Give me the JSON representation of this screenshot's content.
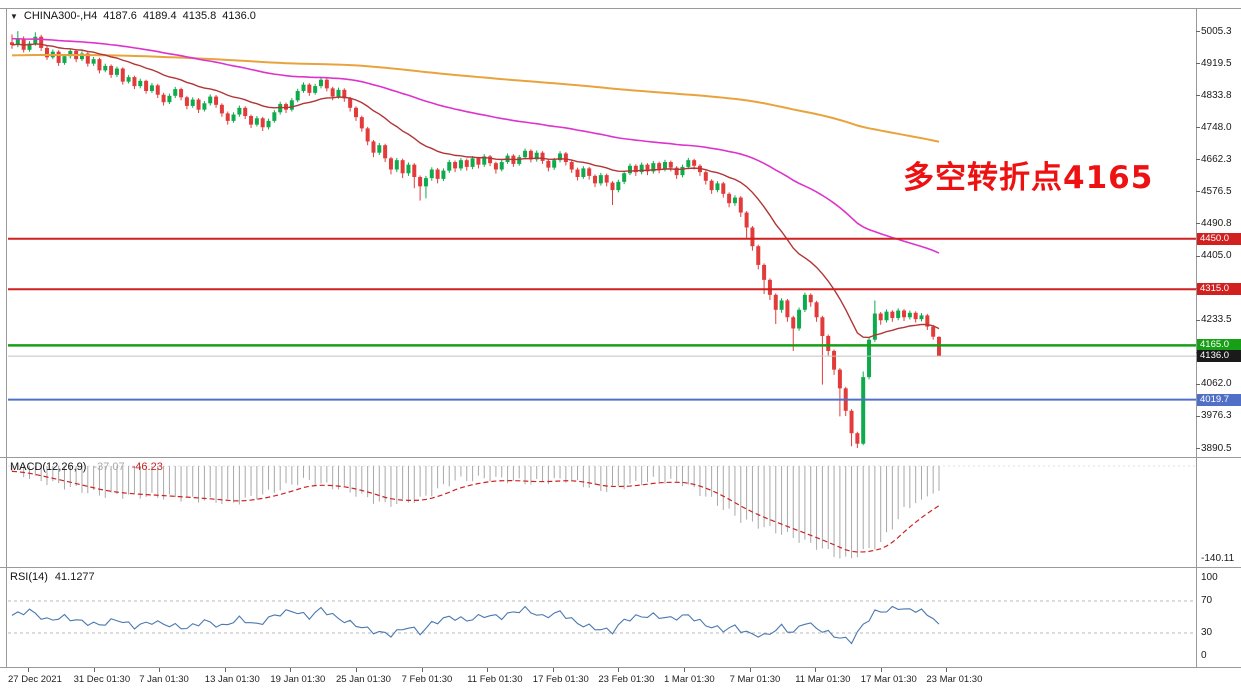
{
  "window_title": "CHINA300-,H4 chart",
  "title": {
    "dropdown_icon": "▼",
    "symbol": "CHINA300-,H4",
    "open": "4187.6",
    "high": "4189.4",
    "low": "4135.8",
    "close": "4136.0"
  },
  "annotation": {
    "text": "多空转折点4165",
    "color": "#ee1111"
  },
  "chart_data": {
    "type": "candlestick",
    "symbol": "CHINA300-",
    "timeframe": "H4",
    "ylim": [
      3871.8,
      5066.8
    ],
    "grid": false,
    "candle_colors": {
      "up": "#0eaa4c",
      "down": "#e23b3b"
    },
    "y_ticks": [
      "5005.3",
      "4919.5",
      "4833.8",
      "4748.0",
      "4662.3",
      "4576.5",
      "4490.8",
      "4405.0",
      "4319.3",
      "4233.5",
      "4147.8",
      "4062.0",
      "3976.3",
      "3890.5"
    ],
    "x_labels": [
      "27 Dec 2021",
      "31 Dec 01:30",
      "7 Jan 01:30",
      "13 Jan 01:30",
      "19 Jan 01:30",
      "25 Jan 01:30",
      "7 Feb 01:30",
      "11 Feb 01:30",
      "17 Feb 01:30",
      "23 Feb 01:30",
      "1 Mar 01:30",
      "7 Mar 01:30",
      "11 Mar 01:30",
      "17 Mar 01:30",
      "23 Mar 01:30"
    ],
    "hlines": [
      {
        "price": 4450.0,
        "label": "4450.0",
        "color": "#d02020",
        "badge": "#d02020",
        "width": 2
      },
      {
        "price": 4315.0,
        "label": "4315.0",
        "color": "#d02020",
        "badge": "#d02020",
        "width": 2
      },
      {
        "price": 4165.0,
        "label": "4165.0",
        "color": "#17a017",
        "badge": "#17a017",
        "width": 2.5
      },
      {
        "price": 4136.0,
        "label": "4136.0",
        "color": "#c0c0c0",
        "badge": "#1a1a1a",
        "width": 1
      },
      {
        "price": 4019.7,
        "label": "4019.7",
        "color": "#5070c8",
        "badge": "#5070c8",
        "width": 2
      }
    ],
    "moving_averages": [
      {
        "name": "slow-ma",
        "color": "#e8a33d",
        "alpha": 0.006,
        "seed": 4940,
        "width": 2
      },
      {
        "name": "medium-ma",
        "color": "#dd33cc",
        "alpha": 0.024,
        "seed": 4985,
        "width": 1.6
      },
      {
        "name": "fast-ma",
        "color": "#b23535",
        "alpha": 0.095,
        "seed": 4968,
        "width": 1.4
      }
    ],
    "candles": [
      [
        4975,
        4996,
        4958,
        4968
      ],
      [
        4968,
        5005,
        4962,
        4985
      ],
      [
        4985,
        4991,
        4948,
        4955
      ],
      [
        4955,
        4978,
        4950,
        4972
      ],
      [
        4972,
        5002,
        4966,
        4990
      ],
      [
        4990,
        4995,
        4952,
        4960
      ],
      [
        4960,
        4966,
        4928,
        4935
      ],
      [
        4935,
        4956,
        4930,
        4950
      ],
      [
        4950,
        4954,
        4912,
        4920
      ],
      [
        4920,
        4944,
        4915,
        4938
      ],
      [
        4938,
        4958,
        4932,
        4952
      ],
      [
        4952,
        4957,
        4922,
        4930
      ],
      [
        4930,
        4951,
        4925,
        4945
      ],
      [
        4945,
        4949,
        4910,
        4918
      ],
      [
        4918,
        4936,
        4912,
        4930
      ],
      [
        4930,
        4934,
        4892,
        4900
      ],
      [
        4900,
        4918,
        4895,
        4912
      ],
      [
        4912,
        4916,
        4880,
        4888
      ],
      [
        4888,
        4910,
        4882,
        4905
      ],
      [
        4905,
        4908,
        4862,
        4870
      ],
      [
        4870,
        4888,
        4865,
        4882
      ],
      [
        4882,
        4886,
        4850,
        4858
      ],
      [
        4858,
        4878,
        4852,
        4872
      ],
      [
        4872,
        4875,
        4838,
        4845
      ],
      [
        4845,
        4866,
        4840,
        4860
      ],
      [
        4860,
        4864,
        4826,
        4835
      ],
      [
        4835,
        4840,
        4806,
        4815
      ],
      [
        4815,
        4838,
        4810,
        4832
      ],
      [
        4832,
        4856,
        4826,
        4850
      ],
      [
        4850,
        4854,
        4820,
        4828
      ],
      [
        4828,
        4832,
        4796,
        4805
      ],
      [
        4805,
        4828,
        4800,
        4822
      ],
      [
        4822,
        4826,
        4786,
        4795
      ],
      [
        4795,
        4818,
        4790,
        4812
      ],
      [
        4812,
        4836,
        4806,
        4830
      ],
      [
        4830,
        4834,
        4800,
        4808
      ],
      [
        4808,
        4812,
        4776,
        4785
      ],
      [
        4785,
        4790,
        4755,
        4765
      ],
      [
        4765,
        4788,
        4760,
        4782
      ],
      [
        4782,
        4806,
        4776,
        4800
      ],
      [
        4800,
        4804,
        4770,
        4778
      ],
      [
        4778,
        4782,
        4746,
        4755
      ],
      [
        4755,
        4778,
        4750,
        4772
      ],
      [
        4772,
        4776,
        4738,
        4748
      ],
      [
        4748,
        4771,
        4742,
        4765
      ],
      [
        4765,
        4794,
        4760,
        4788
      ],
      [
        4788,
        4816,
        4782,
        4810
      ],
      [
        4810,
        4814,
        4786,
        4795
      ],
      [
        4795,
        4826,
        4790,
        4820
      ],
      [
        4820,
        4851,
        4815,
        4845
      ],
      [
        4845,
        4868,
        4840,
        4862
      ],
      [
        4862,
        4866,
        4832,
        4840
      ],
      [
        4840,
        4864,
        4835,
        4858
      ],
      [
        4858,
        4881,
        4852,
        4875
      ],
      [
        4875,
        4879,
        4844,
        4852
      ],
      [
        4852,
        4856,
        4820,
        4830
      ],
      [
        4830,
        4854,
        4824,
        4848
      ],
      [
        4848,
        4852,
        4816,
        4825
      ],
      [
        4825,
        4829,
        4790,
        4800
      ],
      [
        4800,
        4804,
        4765,
        4775
      ],
      [
        4775,
        4779,
        4736,
        4745
      ],
      [
        4745,
        4749,
        4700,
        4710
      ],
      [
        4710,
        4714,
        4668,
        4680
      ],
      [
        4680,
        4706,
        4674,
        4700
      ],
      [
        4700,
        4704,
        4655,
        4665
      ],
      [
        4665,
        4669,
        4622,
        4635
      ],
      [
        4635,
        4666,
        4628,
        4660
      ],
      [
        4660,
        4664,
        4612,
        4625
      ],
      [
        4625,
        4654,
        4618,
        4648
      ],
      [
        4648,
        4652,
        4585,
        4615
      ],
      [
        4615,
        4619,
        4552,
        4590
      ],
      [
        4590,
        4618,
        4558,
        4612
      ],
      [
        4612,
        4641,
        4605,
        4635
      ],
      [
        4635,
        4639,
        4598,
        4610
      ],
      [
        4610,
        4638,
        4604,
        4632
      ],
      [
        4632,
        4661,
        4626,
        4655
      ],
      [
        4655,
        4659,
        4628,
        4638
      ],
      [
        4638,
        4666,
        4632,
        4660
      ],
      [
        4660,
        4664,
        4632,
        4642
      ],
      [
        4642,
        4671,
        4636,
        4665
      ],
      [
        4665,
        4669,
        4638,
        4648
      ],
      [
        4648,
        4676,
        4642,
        4670
      ],
      [
        4670,
        4674,
        4644,
        4652
      ],
      [
        4652,
        4656,
        4624,
        4635
      ],
      [
        4635,
        4661,
        4630,
        4655
      ],
      [
        4655,
        4678,
        4650,
        4672
      ],
      [
        4672,
        4676,
        4642,
        4650
      ],
      [
        4650,
        4674,
        4645,
        4668
      ],
      [
        4668,
        4691,
        4662,
        4685
      ],
      [
        4685,
        4689,
        4654,
        4662
      ],
      [
        4662,
        4686,
        4656,
        4680
      ],
      [
        4680,
        4684,
        4650,
        4658
      ],
      [
        4658,
        4662,
        4630,
        4640
      ],
      [
        4640,
        4666,
        4634,
        4660
      ],
      [
        4660,
        4684,
        4654,
        4678
      ],
      [
        4678,
        4682,
        4646,
        4655
      ],
      [
        4655,
        4659,
        4626,
        4635
      ],
      [
        4635,
        4640,
        4606,
        4615
      ],
      [
        4615,
        4644,
        4610,
        4638
      ],
      [
        4638,
        4642,
        4608,
        4618
      ],
      [
        4618,
        4622,
        4588,
        4598
      ],
      [
        4598,
        4626,
        4592,
        4620
      ],
      [
        4620,
        4624,
        4590,
        4600
      ],
      [
        4600,
        4604,
        4540,
        4580
      ],
      [
        4580,
        4608,
        4574,
        4602
      ],
      [
        4602,
        4631,
        4596,
        4625
      ],
      [
        4625,
        4651,
        4620,
        4645
      ],
      [
        4645,
        4649,
        4618,
        4628
      ],
      [
        4628,
        4654,
        4622,
        4648
      ],
      [
        4648,
        4652,
        4620,
        4630
      ],
      [
        4630,
        4658,
        4624,
        4652
      ],
      [
        4652,
        4656,
        4625,
        4635
      ],
      [
        4635,
        4661,
        4630,
        4655
      ],
      [
        4655,
        4659,
        4630,
        4640
      ],
      [
        4640,
        4644,
        4610,
        4620
      ],
      [
        4620,
        4648,
        4614,
        4642
      ],
      [
        4642,
        4666,
        4636,
        4660
      ],
      [
        4660,
        4664,
        4635,
        4645
      ],
      [
        4645,
        4649,
        4618,
        4628
      ],
      [
        4628,
        4632,
        4595,
        4605
      ],
      [
        4605,
        4609,
        4570,
        4580
      ],
      [
        4580,
        4604,
        4574,
        4598
      ],
      [
        4598,
        4602,
        4560,
        4570
      ],
      [
        4570,
        4574,
        4534,
        4545
      ],
      [
        4545,
        4566,
        4538,
        4560
      ],
      [
        4560,
        4564,
        4508,
        4520
      ],
      [
        4520,
        4524,
        4452,
        4480
      ],
      [
        4480,
        4484,
        4418,
        4430
      ],
      [
        4430,
        4434,
        4368,
        4380
      ],
      [
        4380,
        4384,
        4302,
        4340
      ],
      [
        4340,
        4344,
        4286,
        4300
      ],
      [
        4300,
        4304,
        4222,
        4260
      ],
      [
        4260,
        4291,
        4252,
        4285
      ],
      [
        4285,
        4289,
        4228,
        4240
      ],
      [
        4240,
        4244,
        4150,
        4210
      ],
      [
        4210,
        4266,
        4204,
        4260
      ],
      [
        4260,
        4306,
        4254,
        4300
      ],
      [
        4300,
        4304,
        4268,
        4280
      ],
      [
        4280,
        4284,
        4228,
        4240
      ],
      [
        4240,
        4244,
        4060,
        4190
      ],
      [
        4190,
        4194,
        4138,
        4150
      ],
      [
        4150,
        4154,
        4086,
        4100
      ],
      [
        4100,
        4104,
        3975,
        4050
      ],
      [
        4050,
        4054,
        3976,
        3990
      ],
      [
        3990,
        3994,
        3895,
        3930
      ],
      [
        3930,
        3934,
        3890.5,
        3902
      ],
      [
        3902,
        4095,
        3898,
        4080
      ],
      [
        4080,
        4186,
        4074,
        4180
      ],
      [
        4180,
        4285,
        4174,
        4250
      ],
      [
        4250,
        4254,
        4220,
        4232
      ],
      [
        4232,
        4261,
        4226,
        4255
      ],
      [
        4255,
        4259,
        4228,
        4238
      ],
      [
        4238,
        4264,
        4232,
        4258
      ],
      [
        4258,
        4262,
        4230,
        4240
      ],
      [
        4240,
        4258,
        4234,
        4252
      ],
      [
        4252,
        4256,
        4226,
        4235
      ],
      [
        4235,
        4251,
        4229,
        4245
      ],
      [
        4245,
        4249,
        4206,
        4215
      ],
      [
        4215,
        4219,
        4180,
        4188
      ],
      [
        4187.6,
        4189.4,
        4135.8,
        4136.0
      ]
    ],
    "macd": {
      "label": "MACD(12,26,9)",
      "value_display": "-37.07",
      "signal_display": "-46.23",
      "min_label": "-140.11",
      "hist_color": "#a8a8a8",
      "signal_color": "#cc2222",
      "points": [
        [
          0,
          -8
        ],
        [
          5,
          -22
        ],
        [
          9,
          -30
        ],
        [
          15,
          -43
        ],
        [
          24,
          -45
        ],
        [
          32,
          -50
        ],
        [
          38,
          -55
        ],
        [
          44,
          -40
        ],
        [
          50,
          -21
        ],
        [
          57,
          -35
        ],
        [
          64,
          -58
        ],
        [
          70,
          -50
        ],
        [
          76,
          -21
        ],
        [
          82,
          -18
        ],
        [
          89,
          -25
        ],
        [
          95,
          -20
        ],
        [
          101,
          -36
        ],
        [
          106,
          -28
        ],
        [
          110,
          -21
        ],
        [
          115,
          -25
        ],
        [
          119,
          -45
        ],
        [
          125,
          -80
        ],
        [
          132,
          -100
        ],
        [
          138,
          -120
        ],
        [
          143,
          -140.11
        ],
        [
          146,
          -128
        ],
        [
          149,
          -115
        ],
        [
          153,
          -66
        ],
        [
          156,
          -50
        ],
        [
          158,
          -41
        ],
        [
          159,
          -37.07
        ]
      ]
    },
    "rsi": {
      "label": "RSI(14)",
      "value_display": "41.1277",
      "color": "#4a78b0",
      "levels": [
        70,
        30
      ],
      "scale_labels": [
        "100",
        "70",
        "30",
        "0"
      ],
      "points": [
        [
          0,
          52
        ],
        [
          3,
          58
        ],
        [
          6,
          46
        ],
        [
          9,
          50
        ],
        [
          12,
          44
        ],
        [
          15,
          40
        ],
        [
          18,
          47
        ],
        [
          21,
          38
        ],
        [
          24,
          44
        ],
        [
          27,
          40
        ],
        [
          30,
          36
        ],
        [
          33,
          45
        ],
        [
          36,
          38
        ],
        [
          39,
          48
        ],
        [
          42,
          40
        ],
        [
          45,
          52
        ],
        [
          48,
          58
        ],
        [
          51,
          50
        ],
        [
          53,
          60
        ],
        [
          56,
          48
        ],
        [
          59,
          40
        ],
        [
          62,
          32
        ],
        [
          65,
          28
        ],
        [
          68,
          38
        ],
        [
          70,
          30
        ],
        [
          72,
          42
        ],
        [
          75,
          50
        ],
        [
          78,
          46
        ],
        [
          81,
          52
        ],
        [
          84,
          50
        ],
        [
          86,
          56
        ],
        [
          88,
          60
        ],
        [
          91,
          50
        ],
        [
          94,
          56
        ],
        [
          97,
          42
        ],
        [
          100,
          36
        ],
        [
          103,
          32
        ],
        [
          105,
          46
        ],
        [
          107,
          50
        ],
        [
          110,
          52
        ],
        [
          113,
          48
        ],
        [
          116,
          52
        ],
        [
          119,
          40
        ],
        [
          122,
          34
        ],
        [
          124,
          38
        ],
        [
          126,
          30
        ],
        [
          129,
          26
        ],
        [
          132,
          38
        ],
        [
          134,
          30
        ],
        [
          136,
          44
        ],
        [
          138,
          36
        ],
        [
          140,
          30
        ],
        [
          142,
          24
        ],
        [
          144,
          20
        ],
        [
          146,
          40
        ],
        [
          148,
          56
        ],
        [
          150,
          58
        ],
        [
          152,
          62
        ],
        [
          154,
          58
        ],
        [
          156,
          60
        ],
        [
          157,
          52
        ],
        [
          158,
          48
        ],
        [
          159,
          41.13
        ]
      ]
    }
  }
}
